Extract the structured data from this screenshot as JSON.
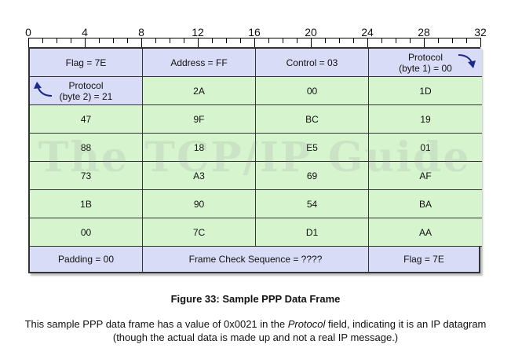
{
  "ruler": {
    "labels": [
      "0",
      "4",
      "8",
      "12",
      "16",
      "20",
      "24",
      "28",
      "32"
    ]
  },
  "header_row": {
    "flag": "Flag = 7E",
    "address": "Address = FF",
    "control": "Control = 03",
    "protocol_byte1_line1": "Protocol",
    "protocol_byte1_line2": "(byte 1) = 00"
  },
  "row2": {
    "protocol_byte2_line1": "Protocol",
    "protocol_byte2_line2": "(byte 2) = 21",
    "values": [
      "2A",
      "00",
      "1D"
    ]
  },
  "data_rows": [
    [
      "47",
      "9F",
      "BC",
      "19"
    ],
    [
      "88",
      "18",
      "E5",
      "01"
    ],
    [
      "73",
      "A3",
      "69",
      "AF"
    ],
    [
      "1B",
      "90",
      "54",
      "BA"
    ],
    [
      "00",
      "7C",
      "D1",
      "AA"
    ]
  ],
  "footer_row": {
    "padding": "Padding = 00",
    "fcs": "Frame Check Sequence = ????",
    "flag": "Flag = 7E"
  },
  "watermark": "The TCP/IP Guide",
  "caption": {
    "title": "Figure 33: Sample PPP Data Frame",
    "body_before": "This sample PPP data frame has a value of 0x0021 in the ",
    "body_italic": "Protocol",
    "body_after": " field, indicating it is an IP datagram (though the actual data is made up and not a real IP message.)"
  },
  "colors": {
    "header_fill": "#d9dcf6",
    "data_fill": "#d6f5cf",
    "arrow": "#1a2a8a"
  }
}
